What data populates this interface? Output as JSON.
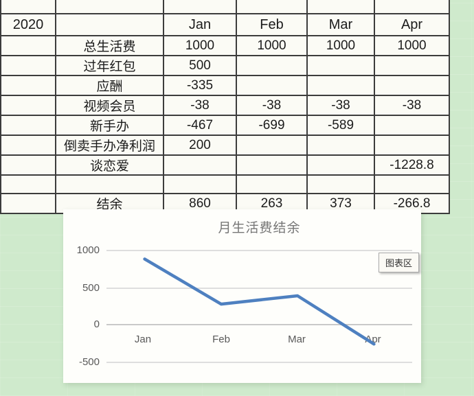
{
  "table": {
    "header": {
      "year": "2020",
      "blank": "",
      "months": [
        "Jan",
        "Feb",
        "Mar",
        "Apr"
      ]
    },
    "rows": [
      {
        "label": "总生活费",
        "values": [
          "1000",
          "1000",
          "1000",
          "1000"
        ]
      },
      {
        "label": "过年红包",
        "values": [
          "500",
          "",
          "",
          ""
        ]
      },
      {
        "label": "应酬",
        "values": [
          "-335",
          "",
          "",
          ""
        ]
      },
      {
        "label": "视频会员",
        "values": [
          "-38",
          "-38",
          "-38",
          "-38"
        ]
      },
      {
        "label": "新手办",
        "values": [
          "-467",
          "-699",
          "-589",
          ""
        ]
      },
      {
        "label": "倒卖手办净利润",
        "values": [
          "200",
          "",
          "",
          ""
        ]
      },
      {
        "label": "谈恋爱",
        "values": [
          "",
          "",
          "",
          "-1228.8"
        ]
      },
      {
        "label": "",
        "values": [
          "",
          "",
          "",
          ""
        ]
      },
      {
        "label": "结余",
        "values": [
          "860",
          "263",
          "373",
          "-266.8"
        ]
      }
    ]
  },
  "chart": {
    "title": "月生活费结余",
    "tooltip_label": "图表区",
    "y_ticks": [
      "1000",
      "500",
      "0",
      "-500"
    ],
    "x_ticks": [
      "Jan",
      "Feb",
      "Mar",
      "Apr"
    ],
    "line_color": "#4e80c0"
  },
  "chart_data": {
    "type": "line",
    "title": "月生活费结余",
    "categories": [
      "Jan",
      "Feb",
      "Mar",
      "Apr"
    ],
    "series": [
      {
        "name": "结余",
        "values": [
          860,
          263,
          373,
          -266.8
        ]
      }
    ],
    "ylim": [
      -500,
      1000
    ],
    "y_tick_step": 500,
    "grid": true,
    "legend_position": "none"
  },
  "colors": {
    "background_green": "#cfeacc",
    "cell_background": "#fbfbf5",
    "grid_border": "#3c3c3c",
    "chart_line": "#4e80c0",
    "chart_gridline": "#dedede",
    "axis_text": "#595959",
    "title_text": "#767676"
  }
}
